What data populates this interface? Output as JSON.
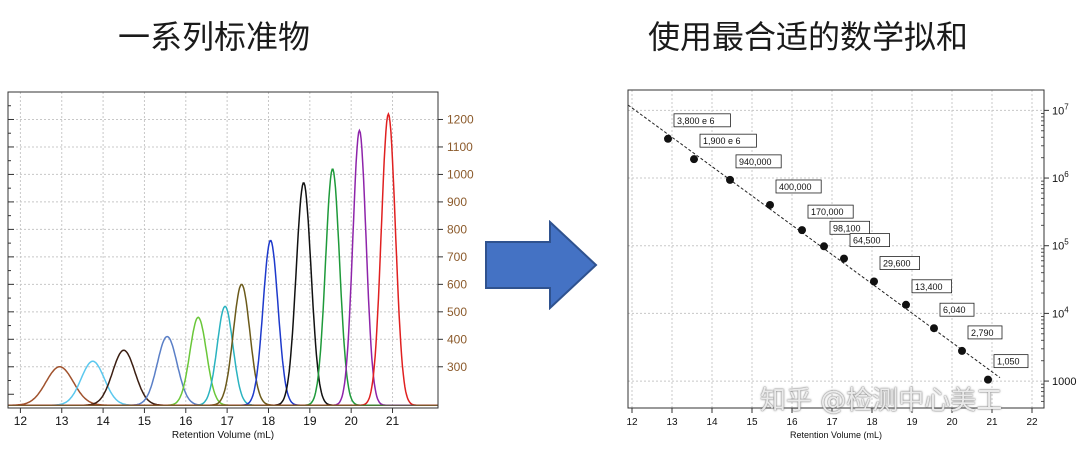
{
  "headings": {
    "left": "一系列标准物",
    "right": "使用最合适的数学拟和"
  },
  "watermark": "知乎 @检测中心美工",
  "colors": {
    "arrow_fill": "#4472c4",
    "arrow_stroke": "#2f528f",
    "right_axis_tick_color": "#8b5a2b"
  },
  "chart_data": [
    {
      "type": "line",
      "title": "",
      "xlabel": "Retention Volume (mL)",
      "ylabel": "",
      "xlim": [
        11.7,
        22.1
      ],
      "ylim": [
        150,
        1300
      ],
      "x_ticks": [
        12,
        13,
        14,
        15,
        16,
        17,
        18,
        19,
        20,
        21
      ],
      "y_ticks_right": [
        300,
        400,
        500,
        600,
        700,
        800,
        900,
        1000,
        1100,
        1200
      ],
      "grid": true,
      "baseline": 160,
      "peaks": [
        {
          "center": 12.95,
          "height": 300,
          "width": 0.33,
          "color": "#a0522d"
        },
        {
          "center": 13.75,
          "height": 320,
          "width": 0.28,
          "color": "#5bc8ee"
        },
        {
          "center": 14.5,
          "height": 360,
          "width": 0.27,
          "color": "#3b1e12"
        },
        {
          "center": 15.55,
          "height": 410,
          "width": 0.24,
          "color": "#5a7fc7"
        },
        {
          "center": 16.3,
          "height": 480,
          "width": 0.2,
          "color": "#6ac739"
        },
        {
          "center": 16.95,
          "height": 520,
          "width": 0.19,
          "color": "#2ab3c0"
        },
        {
          "center": 17.35,
          "height": 600,
          "width": 0.2,
          "color": "#6b5a1a"
        },
        {
          "center": 18.05,
          "height": 760,
          "width": 0.18,
          "color": "#1e3acc"
        },
        {
          "center": 18.85,
          "height": 970,
          "width": 0.18,
          "color": "#111111"
        },
        {
          "center": 19.55,
          "height": 1020,
          "width": 0.17,
          "color": "#1e9a3a"
        },
        {
          "center": 20.2,
          "height": 1160,
          "width": 0.16,
          "color": "#8e24aa"
        },
        {
          "center": 20.9,
          "height": 1220,
          "width": 0.17,
          "color": "#e02020"
        }
      ]
    },
    {
      "type": "scatter",
      "title": "",
      "xlabel": "Retention Volume (mL)",
      "ylabel": "",
      "y_scale": "log",
      "xlim": [
        11.9,
        22.3
      ],
      "ylim": [
        400,
        20000000
      ],
      "x_ticks": [
        12,
        13,
        14,
        15,
        16,
        17,
        18,
        19,
        20,
        21,
        22
      ],
      "y_tick_labels_right": [
        "10^7",
        "10^6",
        "10^5",
        "10^4",
        "1000"
      ],
      "grid": true,
      "fit_line": true,
      "points": [
        {
          "x": 12.9,
          "y": 3800000,
          "label": "3,800 e 6"
        },
        {
          "x": 13.55,
          "y": 1900000,
          "label": "1,900 e 6"
        },
        {
          "x": 14.45,
          "y": 940000,
          "label": "940,000"
        },
        {
          "x": 15.45,
          "y": 400000,
          "label": "400,000"
        },
        {
          "x": 16.25,
          "y": 170000,
          "label": "170,000"
        },
        {
          "x": 16.8,
          "y": 98100,
          "label": "98,100"
        },
        {
          "x": 17.3,
          "y": 64500,
          "label": "64,500"
        },
        {
          "x": 18.05,
          "y": 29600,
          "label": "29,600"
        },
        {
          "x": 18.85,
          "y": 13400,
          "label": "13,400"
        },
        {
          "x": 19.55,
          "y": 6040,
          "label": "6,040"
        },
        {
          "x": 20.25,
          "y": 2790,
          "label": "2,790"
        },
        {
          "x": 20.9,
          "y": 1050,
          "label": "1,050"
        }
      ]
    }
  ]
}
